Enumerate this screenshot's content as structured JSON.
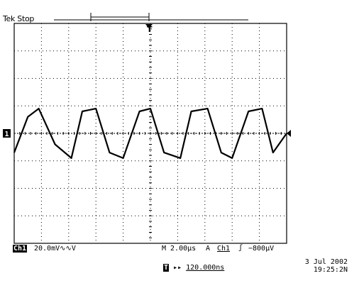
{
  "status": "Tek Stop",
  "trigger_marker": "T",
  "channel_marker": "1",
  "readout": {
    "ch1_label": "Ch1",
    "ch1_scale": "20.0mV",
    "ch1_scale_suffix": "∿∿V",
    "timebase": "M 2.00µs",
    "trigger_mode": "A",
    "trigger_channel": "Ch1",
    "trigger_slope": "ʃ",
    "trigger_level": "−800µV"
  },
  "date": "3 Jul  2002",
  "time": "19:25:2N",
  "trigger_position": {
    "icon": "T",
    "arrow": "▸▸",
    "value": "120.000ns"
  },
  "chart_data": {
    "type": "line",
    "title": "",
    "xlabel": "",
    "ylabel": "",
    "x_divisions": 10,
    "y_divisions": 8,
    "xlim": [
      0,
      10
    ],
    "ylim": [
      -4,
      4
    ],
    "grid": true,
    "series": [
      {
        "waveform": "sawtooth-like periodic",
        "x": [
          0,
          0.5,
          0.9,
          1.5,
          2.1,
          2.5,
          3.0,
          3.5,
          4.0,
          4.6,
          5.0,
          5.5,
          6.1,
          6.5,
          7.1,
          7.6,
          8.0,
          8.6,
          9.1,
          9.5,
          10.0
        ],
        "y": [
          -0.7,
          0.6,
          0.9,
          -0.4,
          -0.9,
          0.8,
          0.9,
          -0.7,
          -0.9,
          0.8,
          0.9,
          -0.7,
          -0.9,
          0.8,
          0.9,
          -0.7,
          -0.9,
          0.8,
          0.9,
          -0.7,
          0.0
        ]
      }
    ]
  }
}
